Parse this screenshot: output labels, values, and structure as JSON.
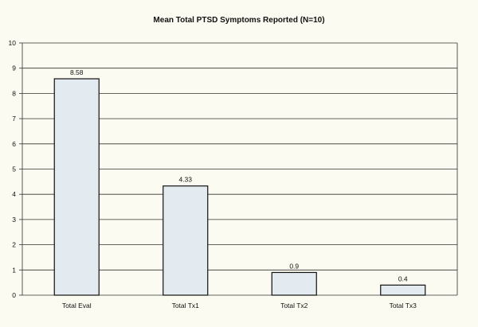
{
  "chart_data": {
    "type": "bar",
    "title": "Mean Total PTSD Symptoms Reported (N=10)",
    "categories": [
      "Total Eval",
      "Total Tx1",
      "Total Tx2",
      "Total Tx3"
    ],
    "values": [
      8.58,
      4.33,
      0.9,
      0.4
    ],
    "data_labels": [
      "8.58",
      "4.33",
      "0.9",
      "0.4"
    ],
    "xlabel": "",
    "ylabel": "",
    "ylim": [
      0,
      10
    ],
    "yticks": [
      "0",
      "1",
      "2",
      "3",
      "4",
      "5",
      "6",
      "7",
      "8",
      "9",
      "10"
    ],
    "grid": true,
    "legend": "none",
    "colors": {
      "bar_fill": "#e3ebf1",
      "bar_stroke": "#111111",
      "background": "#fbfbf1"
    }
  }
}
